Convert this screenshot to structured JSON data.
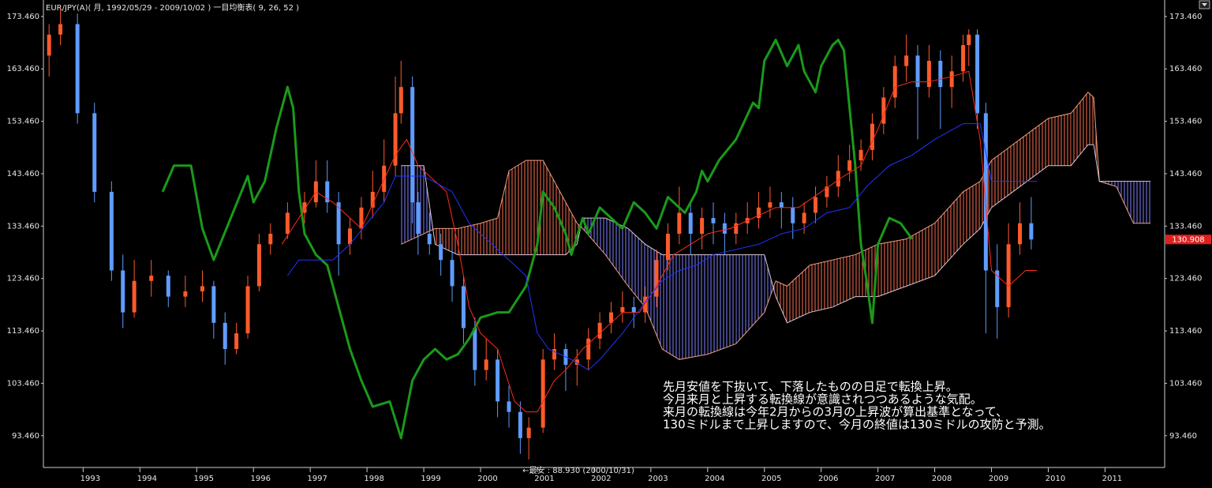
{
  "chart_data": {
    "type": "candlestick",
    "title": "EUR/JPY(A)( 月, 1992/05/29 - 2009/10/02 )   一目均衡表( 9, 26, 52 )",
    "xlim": [
      1992.3,
      2012.05
    ],
    "ylim": [
      87.4,
      175.4
    ],
    "xticks": [
      1993,
      1994,
      1995,
      1996,
      1997,
      1998,
      1999,
      2000,
      2001,
      2002,
      2003,
      2004,
      2005,
      2006,
      2007,
      2008,
      2009,
      2010,
      2011
    ],
    "yticks": [
      {
        "value": 93.46,
        "label": "93.460"
      },
      {
        "value": 103.46,
        "label": "103.460"
      },
      {
        "value": 113.46,
        "label": "113.460"
      },
      {
        "value": 123.46,
        "label": "123.460"
      },
      {
        "value": 133.46,
        "label": "133.460"
      },
      {
        "value": 143.46,
        "label": "143.460"
      },
      {
        "value": 153.46,
        "label": "153.460"
      },
      {
        "value": 163.46,
        "label": "163.460"
      },
      {
        "value": 173.46,
        "label": "173.460"
      }
    ],
    "up_color": "#ff5a2a",
    "down_color": "#5f9cff",
    "x": [
      1992.4,
      1992.6,
      1992.9,
      1993.2,
      1993.5,
      1993.7,
      1993.9,
      1994.2,
      1994.5,
      1994.8,
      1995.1,
      1995.3,
      1995.5,
      1995.7,
      1995.9,
      1996.1,
      1996.3,
      1996.6,
      1996.9,
      1997.1,
      1997.3,
      1997.5,
      1997.7,
      1997.9,
      1998.1,
      1998.3,
      1998.5,
      1998.6,
      1998.8,
      1998.9,
      1999.1,
      1999.3,
      1999.5,
      1999.7,
      1999.9,
      2000.1,
      2000.3,
      2000.5,
      2000.7,
      2000.85,
      2001.1,
      2001.3,
      2001.5,
      2001.7,
      2001.9,
      2002.1,
      2002.3,
      2002.5,
      2002.7,
      2002.9,
      2003.1,
      2003.3,
      2003.5,
      2003.7,
      2003.9,
      2004.1,
      2004.3,
      2004.5,
      2004.7,
      2004.9,
      2005.1,
      2005.3,
      2005.5,
      2005.7,
      2005.9,
      2006.1,
      2006.3,
      2006.5,
      2006.7,
      2006.9,
      2007.1,
      2007.3,
      2007.5,
      2007.7,
      2007.9,
      2008.1,
      2008.3,
      2008.5,
      2008.6,
      2008.75,
      2008.9,
      2009.1,
      2009.3,
      2009.5,
      2009.7
    ],
    "ohlc": [
      [
        166,
        172,
        162,
        170
      ],
      [
        170,
        175,
        168,
        172
      ],
      [
        172,
        174,
        153,
        155
      ],
      [
        155,
        157,
        138,
        140
      ],
      [
        140,
        142,
        123,
        125
      ],
      [
        125,
        128,
        114,
        117
      ],
      [
        117,
        127,
        116,
        123
      ],
      [
        123,
        127,
        120,
        124
      ],
      [
        124,
        125,
        118,
        120
      ],
      [
        120,
        124,
        118,
        121
      ],
      [
        121,
        125,
        119,
        122
      ],
      [
        122,
        123,
        112,
        115
      ],
      [
        115,
        117,
        107,
        110
      ],
      [
        110,
        115,
        109,
        113
      ],
      [
        113,
        124,
        112,
        122
      ],
      [
        122,
        132,
        121,
        130
      ],
      [
        130,
        134,
        128,
        132
      ],
      [
        132,
        138,
        131,
        136
      ],
      [
        136,
        140,
        134,
        138
      ],
      [
        138,
        146,
        137,
        142
      ],
      [
        142,
        146,
        136,
        138
      ],
      [
        138,
        140,
        124,
        130
      ],
      [
        130,
        135,
        128,
        133
      ],
      [
        133,
        139,
        131,
        137
      ],
      [
        137,
        144,
        135,
        140
      ],
      [
        140,
        150,
        138,
        145
      ],
      [
        145,
        162,
        143,
        155
      ],
      [
        155,
        165,
        153,
        160
      ],
      [
        160,
        162,
        134,
        138
      ],
      [
        138,
        140,
        128,
        132
      ],
      [
        132,
        136,
        128,
        130
      ],
      [
        130,
        132,
        124,
        127
      ],
      [
        127,
        129,
        119,
        122
      ],
      [
        122,
        124,
        111,
        114
      ],
      [
        114,
        116,
        103,
        106
      ],
      [
        106,
        112,
        104,
        108
      ],
      [
        108,
        110,
        97,
        100
      ],
      [
        100,
        103,
        95,
        98
      ],
      [
        98,
        100,
        90,
        93
      ],
      [
        93,
        97,
        88.93,
        95
      ],
      [
        95,
        110,
        94,
        108
      ],
      [
        108,
        113,
        106,
        110
      ],
      [
        110,
        111,
        102,
        107
      ],
      [
        107,
        110,
        103,
        108
      ],
      [
        108,
        114,
        106,
        112
      ],
      [
        112,
        117,
        110,
        115
      ],
      [
        115,
        119,
        113,
        117
      ],
      [
        117,
        121,
        115,
        118
      ],
      [
        118,
        120,
        114,
        117
      ],
      [
        117,
        122,
        115,
        120
      ],
      [
        120,
        129,
        118,
        127
      ],
      [
        127,
        134,
        125,
        132
      ],
      [
        132,
        141,
        130,
        136
      ],
      [
        136,
        138,
        128,
        132
      ],
      [
        132,
        137,
        129,
        135
      ],
      [
        135,
        138,
        130,
        134
      ],
      [
        134,
        136,
        128,
        132
      ],
      [
        132,
        136,
        130,
        134
      ],
      [
        134,
        138,
        132,
        135
      ],
      [
        135,
        140,
        133,
        137
      ],
      [
        137,
        141,
        135,
        138
      ],
      [
        138,
        140,
        133,
        137
      ],
      [
        137,
        139,
        131,
        134
      ],
      [
        134,
        138,
        132,
        136
      ],
      [
        136,
        141,
        134,
        139
      ],
      [
        139,
        143,
        137,
        141
      ],
      [
        141,
        147,
        139,
        144
      ],
      [
        144,
        149,
        142,
        146
      ],
      [
        146,
        150,
        144,
        148
      ],
      [
        148,
        155,
        146,
        153
      ],
      [
        153,
        160,
        151,
        158
      ],
      [
        158,
        166,
        156,
        164
      ],
      [
        164,
        170,
        161,
        166
      ],
      [
        166,
        168,
        150,
        160
      ],
      [
        160,
        168,
        158,
        165
      ],
      [
        165,
        167,
        152,
        160
      ],
      [
        160,
        166,
        156,
        163
      ],
      [
        163,
        170,
        161,
        168
      ],
      [
        168,
        171,
        164,
        170
      ],
      [
        170,
        171,
        152,
        155
      ],
      [
        155,
        157,
        113,
        125
      ],
      [
        125,
        130,
        112,
        118
      ],
      [
        118,
        134,
        116,
        130
      ],
      [
        130,
        138,
        128,
        134
      ],
      [
        134,
        139,
        129,
        130.908
      ]
    ],
    "lines": [
      {
        "color": "#1a9a1a",
        "width": 3,
        "x": [
          1994.4,
          1994.6,
          1994.9,
          1995.1,
          1995.3,
          1995.6,
          1995.9,
          1996.0,
          1996.2,
          1996.4,
          1996.6,
          1996.7,
          1996.8,
          1996.9,
          1997.1,
          1997.3,
          1997.5,
          1997.7,
          1997.9,
          1998.1,
          1998.4,
          1998.6,
          1998.8,
          1999.0,
          1999.2,
          1999.4,
          1999.6,
          1999.8,
          2000.0,
          2000.3,
          2000.5,
          2000.8,
          2001.0,
          2001.1,
          2001.3,
          2001.5,
          2001.6,
          2001.8,
          2001.9,
          2002.1,
          2002.3,
          2002.5,
          2002.7,
          2002.9,
          2003.1,
          2003.3,
          2003.6,
          2003.8,
          2003.9,
          2004.0,
          2004.2,
          2004.5,
          2004.8,
          2004.9,
          2005.0,
          2005.2,
          2005.4,
          2005.6,
          2005.7,
          2005.9,
          2006.0,
          2006.2,
          2006.3,
          2006.4,
          2006.6,
          2006.7,
          2006.8,
          2006.9,
          2007.0,
          2007.2,
          2007.4,
          2007.6
        ],
        "values": [
          140,
          145,
          145,
          133,
          127,
          135,
          143,
          138,
          142,
          152,
          160,
          156,
          140,
          132,
          128,
          126,
          118,
          110,
          104,
          99,
          100,
          93,
          104,
          108,
          110,
          108,
          109,
          112,
          116,
          117,
          117,
          122,
          130,
          140,
          137,
          132,
          128,
          135,
          132,
          137,
          135,
          133,
          138,
          136,
          133,
          139,
          136,
          140,
          144,
          142,
          146,
          150,
          157,
          156,
          165,
          169,
          164,
          168,
          163,
          159,
          164,
          168,
          169,
          167,
          145,
          130,
          123,
          115,
          130,
          135,
          134,
          131
        ]
      },
      {
        "color": "#ff2a1a",
        "width": 1,
        "x": [
          1996.5,
          1996.8,
          1997.1,
          1997.4,
          1997.7,
          1997.9,
          1998.2,
          1998.5,
          1998.7,
          1998.9,
          1999.1,
          1999.4,
          1999.6,
          1999.8,
          2000.0,
          2000.3,
          2000.6,
          2000.8,
          2001.0,
          2001.3,
          2001.5,
          2001.8,
          2002.1,
          2002.5,
          2002.8,
          2003.1,
          2003.4,
          2003.7,
          2004.0,
          2004.4,
          2004.8,
          2005.2,
          2005.6,
          2006.0,
          2006.4,
          2006.7,
          2007.0,
          2007.3,
          2007.6,
          2007.9,
          2008.3,
          2008.6,
          2008.8,
          2009.0,
          2009.3,
          2009.6,
          2009.8
        ],
        "values": [
          130,
          135,
          140,
          138,
          135,
          133,
          140,
          147,
          150,
          145,
          143,
          140,
          130,
          118,
          113,
          110,
          100,
          98,
          98,
          104,
          106,
          110,
          113,
          117,
          117,
          122,
          128,
          130,
          132,
          133,
          135,
          137,
          137,
          140,
          143,
          145,
          152,
          160,
          161,
          161,
          162,
          163,
          150,
          125,
          122,
          125,
          125
        ]
      },
      {
        "color": "#2233ff",
        "width": 1,
        "x": [
          1996.6,
          1996.8,
          1997.4,
          1997.7,
          1998.0,
          1998.3,
          1998.5,
          1999.0,
          1999.5,
          1999.8,
          2000.2,
          2000.5,
          2000.8,
          2001.0,
          2001.2,
          2001.6,
          2001.9,
          2002.1,
          2002.5,
          2002.9,
          2003.2,
          2003.5,
          2003.8,
          2004.1,
          2004.5,
          2004.9,
          2005.3,
          2005.7,
          2006.1,
          2006.5,
          2006.8,
          2007.2,
          2007.6,
          2008.0,
          2008.5,
          2008.8,
          2009.0,
          2009.3,
          2009.8
        ],
        "values": [
          124,
          127,
          127,
          130,
          134,
          138,
          143,
          143,
          140,
          134,
          130,
          127,
          124,
          113,
          110,
          108,
          106,
          108,
          113,
          119,
          123,
          125,
          126,
          128,
          129,
          130,
          132,
          133,
          136,
          137,
          141,
          145,
          147,
          150,
          153,
          153,
          142,
          142,
          142
        ]
      }
    ],
    "cloud": {
      "a_color": "#f0a080",
      "b_color": "#d8c8d8",
      "up_color": "#ff7050",
      "down_color": "#8080ff",
      "x": [
        1998.6,
        1999.0,
        1999.2,
        1999.6,
        2000.0,
        2000.3,
        2000.5,
        2000.8,
        2001.1,
        2001.5,
        2001.7,
        2001.8,
        2002.2,
        2002.6,
        2002.9,
        2003.2,
        2003.5,
        2004.0,
        2004.5,
        2005.0,
        2005.2,
        2005.4,
        2005.8,
        2006.2,
        2006.6,
        2007.0,
        2007.5,
        2008.0,
        2008.5,
        2008.8,
        2009.0,
        2009.5,
        2010.0,
        2010.4,
        2010.7,
        2010.8,
        2010.9,
        2011.2,
        2011.5,
        2011.8
      ],
      "span_a": [
        130,
        132,
        133,
        133,
        134,
        135,
        144,
        146,
        146,
        138,
        134,
        133,
        128,
        122,
        118,
        110,
        108,
        109,
        111,
        117,
        123,
        122,
        126,
        127,
        128,
        130,
        131,
        134,
        140,
        142,
        146,
        150,
        154,
        155,
        159,
        158,
        142,
        141,
        134,
        134
      ],
      "span_b": [
        145,
        145,
        130,
        128,
        128,
        128,
        128,
        128,
        128,
        128,
        130,
        135,
        135,
        133,
        130,
        128,
        128,
        128,
        128,
        128,
        120,
        115,
        117,
        118,
        120,
        120,
        122,
        124,
        130,
        133,
        137,
        141,
        145,
        145,
        149,
        149,
        142,
        142,
        142,
        142
      ]
    },
    "last_price": 130.908,
    "last_price_color": "#e02020",
    "low_note": "←最安 : 88.930 (2000/10/31)",
    "note_lines": [
      "先月安値を下抜いて、下落したものの日足で転換上昇。",
      "今月来月と上昇する転換線が意識されつつあるような気配。",
      "来月の転換線は今年2月からの3月の上昇波が算出基準となって、",
      "130ミドルまで上昇しますので、今月の終値は130ミドルの攻防と予測。"
    ]
  }
}
